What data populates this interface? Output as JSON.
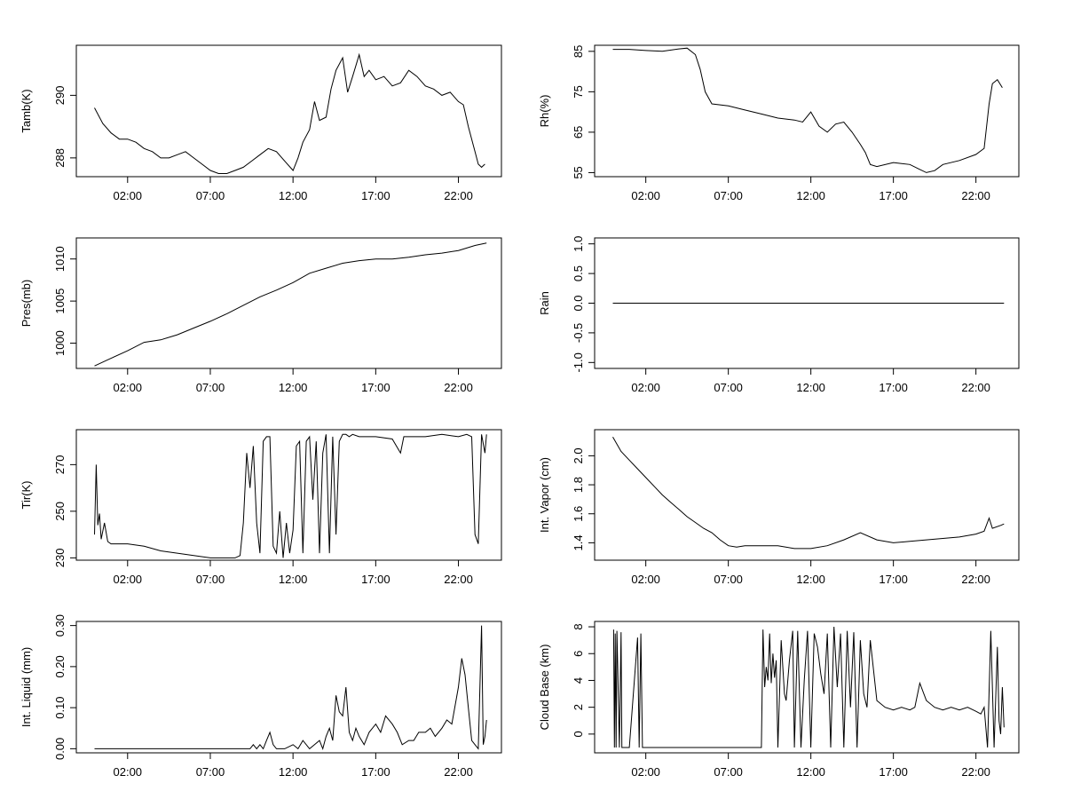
{
  "chart_data": [
    {
      "type": "line",
      "ylabel": "Tamb(K)",
      "ylim": [
        287.4,
        291.6
      ],
      "yticks": [
        288,
        290
      ],
      "ytick_labels": [
        "288",
        "290"
      ],
      "xticks": [
        2,
        7,
        12,
        17,
        22
      ],
      "xtick_labels": [
        "02:00",
        "07:00",
        "12:00",
        "17:00",
        "22:00"
      ],
      "xlim": [
        -1.1,
        24.6
      ],
      "series": [
        {
          "x": [
            0,
            0.5,
            1,
            1.5,
            2,
            2.5,
            3,
            3.5,
            4,
            4.5,
            5,
            5.5,
            6,
            6.5,
            7,
            7.5,
            8,
            8.5,
            9,
            9.5,
            10,
            10.5,
            11,
            11.5,
            12,
            12.3,
            12.6,
            13,
            13.3,
            13.6,
            14,
            14.3,
            14.6,
            15,
            15.3,
            15.6,
            16,
            16.3,
            16.6,
            17,
            17.5,
            18,
            18.5,
            19,
            19.5,
            20,
            20.5,
            21,
            21.5,
            22,
            22.3,
            22.6,
            23,
            23.2,
            23.4,
            23.6
          ],
          "y": [
            289.6,
            289.1,
            288.8,
            288.6,
            288.6,
            288.5,
            288.3,
            288.2,
            288.0,
            288.0,
            288.1,
            288.2,
            288.0,
            287.8,
            287.6,
            287.5,
            287.5,
            287.6,
            287.7,
            287.9,
            288.1,
            288.3,
            288.2,
            287.9,
            287.6,
            288.0,
            288.5,
            288.9,
            289.8,
            289.2,
            289.3,
            290.2,
            290.8,
            291.2,
            290.1,
            290.6,
            291.3,
            290.6,
            290.8,
            290.5,
            290.6,
            290.3,
            290.4,
            290.8,
            290.6,
            290.3,
            290.2,
            290.0,
            290.1,
            289.8,
            289.7,
            289.0,
            288.2,
            287.8,
            287.7,
            287.8
          ]
        }
      ]
    },
    {
      "type": "line",
      "ylabel": "Rh(%)",
      "ylim": [
        54,
        86.5
      ],
      "yticks": [
        55,
        65,
        75,
        85
      ],
      "ytick_labels": [
        "55",
        "65",
        "75",
        "85"
      ],
      "xticks": [
        2,
        7,
        12,
        17,
        22
      ],
      "xtick_labels": [
        "02:00",
        "07:00",
        "12:00",
        "17:00",
        "22:00"
      ],
      "xlim": [
        -1.1,
        24.6
      ],
      "series": [
        {
          "x": [
            0,
            1,
            2,
            3,
            4,
            4.5,
            5,
            5.3,
            5.6,
            6,
            7,
            8,
            9,
            10,
            11,
            11.5,
            12,
            12.5,
            13,
            13.5,
            14,
            14.5,
            15,
            15.3,
            15.6,
            16,
            17,
            18,
            18.5,
            19,
            19.5,
            20,
            21,
            22,
            22.5,
            22.8,
            23,
            23.3,
            23.6
          ],
          "y": [
            85.5,
            85.5,
            85.2,
            85.0,
            85.6,
            85.8,
            84.2,
            80.5,
            75.0,
            72.0,
            71.5,
            70.5,
            69.5,
            68.5,
            68.0,
            67.5,
            70.0,
            66.5,
            65.0,
            67.0,
            67.5,
            65.0,
            62.0,
            60.0,
            57.0,
            56.5,
            57.5,
            57.0,
            56.0,
            55.0,
            55.5,
            57.0,
            58.0,
            59.5,
            61.0,
            72.0,
            77.0,
            78.0,
            76.0
          ]
        }
      ]
    },
    {
      "type": "line",
      "ylabel": "Pres(mb)",
      "ylim": [
        997,
        1012.5
      ],
      "yticks": [
        1000,
        1005,
        1010
      ],
      "ytick_labels": [
        "1000",
        "1005",
        "1010"
      ],
      "xticks": [
        2,
        7,
        12,
        17,
        22
      ],
      "xtick_labels": [
        "02:00",
        "07:00",
        "12:00",
        "17:00",
        "22:00"
      ],
      "xlim": [
        -1.1,
        24.6
      ],
      "series": [
        {
          "x": [
            0,
            1,
            2,
            3,
            4,
            5,
            6,
            7,
            8,
            9,
            10,
            11,
            12,
            13,
            14,
            15,
            16,
            17,
            18,
            19,
            20,
            21,
            22,
            23,
            23.7
          ],
          "y": [
            997.3,
            998.2,
            999.1,
            1000.1,
            1000.4,
            1001.0,
            1001.8,
            1002.6,
            1003.5,
            1004.5,
            1005.5,
            1006.3,
            1007.2,
            1008.3,
            1008.9,
            1009.5,
            1009.8,
            1010.0,
            1010.0,
            1010.2,
            1010.5,
            1010.7,
            1011.0,
            1011.6,
            1011.9
          ]
        }
      ]
    },
    {
      "type": "line",
      "ylabel": "Rain",
      "ylim": [
        -1.1,
        1.1
      ],
      "yticks": [
        -1,
        -0.5,
        0,
        0.5,
        1
      ],
      "ytick_labels": [
        "-1.0",
        "-0.5",
        "0.0",
        "0.5",
        "1.0"
      ],
      "xticks": [
        2,
        7,
        12,
        17,
        22
      ],
      "xtick_labels": [
        "02:00",
        "07:00",
        "12:00",
        "17:00",
        "22:00"
      ],
      "xlim": [
        -1.1,
        24.6
      ],
      "series": [
        {
          "x": [
            0,
            23.7
          ],
          "y": [
            0,
            0
          ]
        }
      ]
    },
    {
      "type": "line",
      "ylabel": "Tir(K)",
      "ylim": [
        229,
        285
      ],
      "yticks": [
        230,
        250,
        270
      ],
      "ytick_labels": [
        "230",
        "250",
        "270"
      ],
      "xticks": [
        2,
        7,
        12,
        17,
        22
      ],
      "xtick_labels": [
        "02:00",
        "07:00",
        "12:00",
        "17:00",
        "22:00"
      ],
      "xlim": [
        -1.1,
        24.6
      ],
      "series": [
        {
          "x": [
            0,
            0.1,
            0.2,
            0.3,
            0.4,
            0.6,
            0.8,
            1,
            2,
            3,
            4,
            5,
            6,
            7,
            8,
            8.5,
            8.8,
            9.0,
            9.2,
            9.4,
            9.6,
            9.8,
            10.0,
            10.2,
            10.4,
            10.6,
            10.8,
            11.0,
            11.2,
            11.4,
            11.6,
            11.8,
            12.0,
            12.2,
            12.4,
            12.6,
            12.8,
            13.0,
            13.2,
            13.4,
            13.6,
            13.8,
            14.0,
            14.2,
            14.4,
            14.6,
            14.8,
            15.0,
            15.2,
            15.4,
            15.6,
            16,
            17,
            18,
            18.5,
            18.7,
            19,
            20,
            21,
            22,
            22.5,
            22.8,
            23.0,
            23.2,
            23.4,
            23.6,
            23.7
          ],
          "y": [
            240,
            270,
            244,
            249,
            238,
            245,
            237,
            236,
            236,
            235,
            233,
            232,
            231,
            230,
            230,
            230,
            231,
            245,
            275,
            260,
            278,
            245,
            232,
            280,
            282,
            282,
            235,
            232,
            250,
            230,
            245,
            232,
            242,
            278,
            280,
            232,
            280,
            282,
            255,
            280,
            232,
            275,
            283,
            232,
            282,
            240,
            280,
            283,
            283,
            282,
            283,
            282,
            282,
            281,
            275,
            282,
            282,
            282,
            283,
            282,
            283,
            282,
            240,
            236,
            283,
            275,
            283
          ]
        }
      ]
    },
    {
      "type": "line",
      "ylabel": "Int. Vapor (cm)",
      "ylim": [
        1.28,
        2.18
      ],
      "yticks": [
        1.4,
        1.6,
        1.8,
        2.0
      ],
      "ytick_labels": [
        "1.4",
        "1.6",
        "1.8",
        "2.0"
      ],
      "xticks": [
        2,
        7,
        12,
        17,
        22
      ],
      "xtick_labels": [
        "02:00",
        "07:00",
        "12:00",
        "17:00",
        "22:00"
      ],
      "xlim": [
        -1.1,
        24.6
      ],
      "series": [
        {
          "x": [
            0,
            0.5,
            1,
            1.5,
            2,
            2.5,
            3,
            3.5,
            4,
            4.5,
            5,
            5.5,
            6,
            6.5,
            7,
            7.5,
            8,
            9,
            10,
            11,
            12,
            13,
            14,
            15,
            16,
            17,
            18,
            19,
            20,
            21,
            22,
            22.5,
            22.8,
            23,
            23.5,
            23.7
          ],
          "y": [
            2.13,
            2.03,
            1.97,
            1.91,
            1.85,
            1.79,
            1.73,
            1.68,
            1.63,
            1.58,
            1.54,
            1.5,
            1.47,
            1.42,
            1.38,
            1.37,
            1.38,
            1.38,
            1.38,
            1.36,
            1.36,
            1.38,
            1.42,
            1.47,
            1.42,
            1.4,
            1.41,
            1.42,
            1.43,
            1.44,
            1.46,
            1.48,
            1.57,
            1.5,
            1.52,
            1.53
          ]
        }
      ]
    },
    {
      "type": "line",
      "ylabel": "Int. Liquid (mm)",
      "ylim": [
        -0.01,
        0.31
      ],
      "yticks": [
        0,
        0.1,
        0.2,
        0.3
      ],
      "ytick_labels": [
        "0.00",
        "0.10",
        "0.20",
        "0.30"
      ],
      "xticks": [
        2,
        7,
        12,
        17,
        22
      ],
      "xtick_labels": [
        "02:00",
        "07:00",
        "12:00",
        "17:00",
        "22:00"
      ],
      "xlim": [
        -1.1,
        24.6
      ],
      "series": [
        {
          "x": [
            0,
            9.4,
            9.6,
            9.8,
            10.0,
            10.2,
            10.4,
            10.6,
            10.8,
            11.0,
            11.5,
            12.0,
            12.3,
            12.6,
            13.0,
            13.3,
            13.6,
            13.8,
            14.0,
            14.2,
            14.4,
            14.6,
            14.8,
            15.0,
            15.2,
            15.4,
            15.6,
            15.8,
            16.0,
            16.3,
            16.6,
            17.0,
            17.3,
            17.6,
            18.0,
            18.3,
            18.6,
            19.0,
            19.3,
            19.6,
            20.0,
            20.3,
            20.6,
            21.0,
            21.3,
            21.6,
            22.0,
            22.2,
            22.4,
            22.6,
            22.8,
            23.0,
            23.2,
            23.4,
            23.5,
            23.6,
            23.7
          ],
          "y": [
            0,
            0,
            0.01,
            0,
            0.01,
            0,
            0.02,
            0.04,
            0.01,
            0,
            0,
            0.01,
            0,
            0.02,
            0,
            0.01,
            0.02,
            0,
            0.03,
            0.05,
            0.02,
            0.13,
            0.09,
            0.08,
            0.15,
            0.04,
            0.02,
            0.05,
            0.03,
            0.01,
            0.04,
            0.06,
            0.04,
            0.08,
            0.06,
            0.04,
            0.01,
            0.02,
            0.02,
            0.04,
            0.04,
            0.05,
            0.03,
            0.05,
            0.07,
            0.06,
            0.15,
            0.22,
            0.18,
            0.1,
            0.02,
            0.01,
            0,
            0.3,
            0.01,
            0.03,
            0.07
          ]
        }
      ]
    },
    {
      "type": "line",
      "ylabel": "Cloud Base (km)",
      "ylim": [
        -1.4,
        8.4
      ],
      "yticks": [
        0,
        2,
        4,
        6,
        8
      ],
      "ytick_labels": [
        "0",
        "2",
        "4",
        "6",
        "8"
      ],
      "xticks": [
        2,
        7,
        12,
        17,
        22
      ],
      "xtick_labels": [
        "02:00",
        "07:00",
        "12:00",
        "17:00",
        "22:00"
      ],
      "xlim": [
        -1.1,
        24.6
      ],
      "series": [
        {
          "x": [
            0.05,
            0.1,
            0.15,
            0.2,
            0.25,
            0.3,
            0.4,
            0.5,
            0.55,
            0.6,
            0.7,
            1.0,
            1.5,
            1.6,
            1.7,
            1.8,
            2.0,
            3,
            4,
            5,
            6,
            7,
            8,
            9.0,
            9.1,
            9.2,
            9.3,
            9.4,
            9.5,
            9.6,
            9.7,
            9.8,
            9.9,
            10.0,
            10.2,
            10.4,
            10.5,
            10.7,
            10.9,
            11.0,
            11.2,
            11.4,
            11.6,
            11.8,
            12.0,
            12.2,
            12.4,
            12.6,
            12.8,
            13.0,
            13.2,
            13.4,
            13.6,
            13.8,
            14.0,
            14.2,
            14.4,
            14.6,
            14.8,
            15.0,
            15.2,
            15.4,
            15.6,
            16.0,
            16.5,
            17.0,
            17.5,
            18.0,
            18.3,
            18.6,
            19.0,
            19.5,
            20.0,
            20.5,
            21.0,
            21.5,
            22.0,
            22.3,
            22.5,
            22.7,
            22.9,
            23.1,
            23.3,
            23.4,
            23.5,
            23.6,
            23.7
          ],
          "y": [
            7.8,
            -1,
            7.5,
            -1,
            7.7,
            5.0,
            -1,
            7.6,
            -1,
            -1,
            -1,
            -1,
            7.2,
            -1,
            7.5,
            -1,
            -1,
            -1,
            -1,
            -1,
            -1,
            -1,
            -1,
            -1,
            7.8,
            3.5,
            5.0,
            4.0,
            7.5,
            3.8,
            6.0,
            4.2,
            5.5,
            -1,
            7.0,
            3.0,
            2.5,
            5.5,
            7.7,
            -1,
            7.7,
            -1,
            4.0,
            7.7,
            -1,
            7.5,
            6.5,
            4.5,
            3.0,
            7.5,
            -1,
            8.0,
            3.5,
            7.5,
            -1,
            7.7,
            2.0,
            7.6,
            -1,
            7.0,
            3.0,
            2.0,
            7.0,
            2.5,
            2.0,
            1.8,
            2.0,
            1.8,
            2.0,
            3.8,
            2.5,
            2.0,
            1.8,
            2.0,
            1.8,
            2.0,
            1.7,
            1.5,
            2.0,
            -1,
            7.7,
            -1,
            6.5,
            1.0,
            0.0,
            3.5,
            0.5
          ]
        }
      ]
    }
  ]
}
